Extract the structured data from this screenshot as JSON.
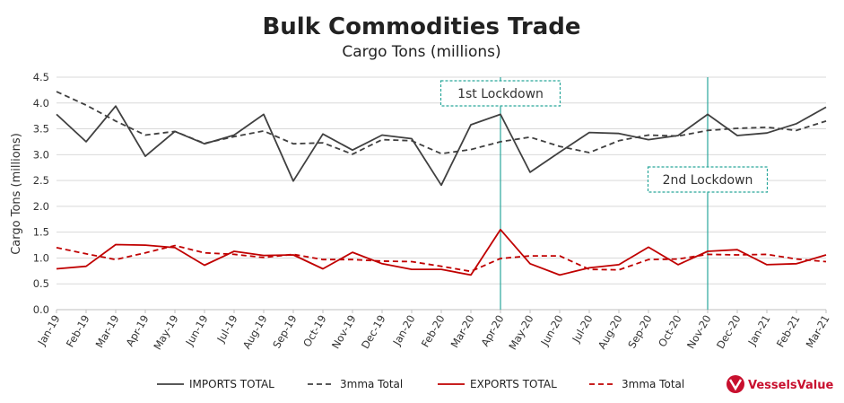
{
  "chart_data": {
    "type": "line",
    "title": "Bulk Commodities Trade",
    "subtitle": "Cargo Tons (millions)",
    "ylabel": "Cargo Tons (millions)",
    "xlabel": "",
    "ylim": [
      0,
      4.5
    ],
    "yticks": [
      "0.0",
      "0.5",
      "1.0",
      "1.5",
      "2.0",
      "2.5",
      "3.0",
      "3.5",
      "4.0",
      "4.5"
    ],
    "grid": true,
    "legend_position": "bottom",
    "categories": [
      "Jan-19",
      "Feb-19",
      "Mar-19",
      "Apr-19",
      "May-19",
      "Jun-19",
      "Jul-19",
      "Aug-19",
      "Sep-19",
      "Oct-19",
      "Nov-19",
      "Dec-19",
      "Jan-20",
      "Feb-20",
      "Mar-20",
      "Apr-20",
      "May-20",
      "Jun-20",
      "Jul-20",
      "Aug-20",
      "Sep-20",
      "Oct-20",
      "Nov-20",
      "Dec-20",
      "Jan-21",
      "Feb-21",
      "Mar-21"
    ],
    "series": [
      {
        "name": "IMPORTS TOTAL",
        "color": "#404040",
        "dash": "solid",
        "values": [
          3.78,
          3.25,
          3.94,
          2.97,
          3.45,
          3.21,
          3.38,
          3.78,
          2.49,
          3.4,
          3.09,
          3.38,
          3.31,
          2.41,
          3.58,
          3.78,
          2.66,
          3.05,
          3.43,
          3.41,
          3.29,
          3.37,
          3.78,
          3.37,
          3.42,
          3.6,
          3.92
        ]
      },
      {
        "name": "3mma Total",
        "color": "#404040",
        "dash": "dashed",
        "values": [
          4.22,
          3.96,
          3.65,
          3.38,
          3.45,
          3.22,
          3.35,
          3.46,
          3.21,
          3.23,
          3.01,
          3.29,
          3.27,
          3.02,
          3.1,
          3.25,
          3.34,
          3.16,
          3.04,
          3.27,
          3.38,
          3.36,
          3.47,
          3.51,
          3.53,
          3.47,
          3.65
        ]
      },
      {
        "name": "EXPORTS TOTAL",
        "color": "#c00000",
        "dash": "solid",
        "values": [
          0.79,
          0.84,
          1.26,
          1.25,
          1.2,
          0.86,
          1.13,
          1.05,
          1.06,
          0.79,
          1.11,
          0.89,
          0.78,
          0.78,
          0.67,
          1.55,
          0.89,
          0.67,
          0.81,
          0.87,
          1.21,
          0.87,
          1.13,
          1.16,
          0.87,
          0.89,
          1.06
        ]
      },
      {
        "name": "3mma Total",
        "color": "#c00000",
        "dash": "dashed",
        "values": [
          1.2,
          1.08,
          0.97,
          1.1,
          1.24,
          1.1,
          1.07,
          1.01,
          1.07,
          0.97,
          0.97,
          0.94,
          0.93,
          0.84,
          0.74,
          0.99,
          1.04,
          1.04,
          0.78,
          0.77,
          0.97,
          0.98,
          1.07,
          1.06,
          1.07,
          0.98,
          0.93
        ]
      }
    ],
    "annotations": [
      {
        "label": "1st Lockdown",
        "category": "Apr-20"
      },
      {
        "label": "2nd Lockdown",
        "category": "Nov-20"
      }
    ],
    "annotation_color": "#2aa79b"
  },
  "branding": {
    "logo_text": "VesselsValue",
    "logo_icon": "vessels-value-logo-icon",
    "logo_color": "#c8102e"
  }
}
